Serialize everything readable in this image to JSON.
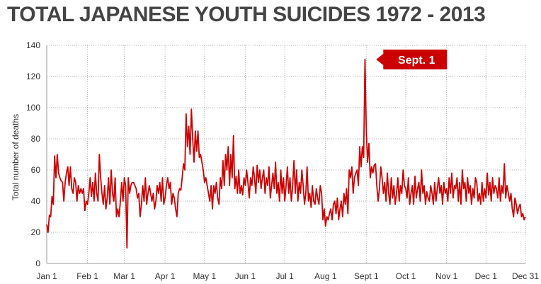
{
  "chart_data": {
    "type": "line",
    "title": "TOTAL JAPANESE YOUTH SUICIDES 1972 - 2013",
    "ylabel": "Total number of deaths",
    "xlabel": "",
    "ylim": [
      0,
      140
    ],
    "yticks": [
      0,
      20,
      40,
      60,
      80,
      100,
      120,
      140
    ],
    "grid": true,
    "line_color": "#cc0000",
    "x_tick_labels": [
      "Jan 1",
      "Feb 1",
      "Mar 1",
      "Apr 1",
      "May 1",
      "Jun 1",
      "Jul 1",
      "Aug 1",
      "Sept 1",
      "Oct 1",
      "Nov 1",
      "Dec 1",
      "Dec 31"
    ],
    "x_tick_days": [
      1,
      32,
      60,
      91,
      121,
      152,
      182,
      213,
      244,
      274,
      305,
      335,
      365
    ],
    "annotation": {
      "label": "Sept. 1",
      "day": 244,
      "value": 131
    },
    "series": [
      {
        "values": [
          25,
          20,
          31,
          30,
          43,
          38,
          69,
          55,
          70,
          58,
          55,
          53,
          52,
          40,
          52,
          58,
          62,
          50,
          62,
          48,
          45,
          55,
          52,
          40,
          50,
          45,
          48,
          45,
          48,
          34,
          40,
          38,
          45,
          55,
          43,
          52,
          40,
          58,
          45,
          40,
          70,
          55,
          45,
          38,
          50,
          35,
          42,
          55,
          38,
          60,
          45,
          40,
          55,
          30,
          35,
          30,
          40,
          52,
          40,
          55,
          50,
          10,
          55,
          45,
          50,
          52,
          52,
          50,
          48,
          42,
          45,
          30,
          38,
          50,
          40,
          55,
          38,
          45,
          50,
          45,
          40,
          45,
          35,
          40,
          50,
          45,
          52,
          40,
          55,
          38,
          42,
          50,
          55,
          48,
          52,
          38,
          45,
          42,
          35,
          30,
          45,
          48,
          47,
          55,
          64,
          60,
          96,
          75,
          88,
          70,
          99,
          80,
          65,
          85,
          72,
          85,
          68,
          70,
          65,
          60,
          52,
          55,
          50,
          45,
          40,
          50,
          35,
          50,
          45,
          52,
          42,
          38,
          55,
          48,
          66,
          50,
          70,
          60,
          75,
          50,
          70,
          55,
          82,
          48,
          56,
          45,
          60,
          45,
          50,
          44,
          55,
          50,
          60,
          52,
          42,
          55,
          50,
          62,
          55,
          45,
          63,
          52,
          60,
          48,
          55,
          60,
          45,
          55,
          50,
          62,
          42,
          50,
          58,
          48,
          65,
          45,
          52,
          40,
          60,
          45,
          55,
          40,
          50,
          62,
          45,
          55,
          40,
          50,
          66,
          45,
          60,
          40,
          52,
          45,
          60,
          50,
          38,
          45,
          62,
          40,
          45,
          36,
          50,
          40,
          38,
          48,
          42,
          38,
          50,
          45,
          28,
          35,
          24,
          30,
          28,
          32,
          35,
          28,
          38,
          40,
          32,
          42,
          28,
          35,
          40,
          30,
          45,
          38,
          48,
          32,
          60,
          55,
          62,
          45,
          55,
          58,
          60,
          50,
          75,
          62,
          75,
          68,
          131,
          85,
          65,
          77,
          55,
          62,
          58,
          63,
          64,
          50,
          40,
          48,
          62,
          55,
          45,
          52,
          40,
          58,
          45,
          38,
          55,
          42,
          50,
          38,
          45,
          55,
          40,
          50,
          45,
          60,
          50,
          48,
          42,
          55,
          38,
          45,
          50,
          38,
          56,
          42,
          48,
          52,
          40,
          60,
          45,
          50,
          38,
          46,
          42,
          40,
          50,
          45,
          38,
          52,
          40,
          48,
          55,
          45,
          50,
          38,
          52,
          45,
          48,
          40,
          55,
          45,
          58,
          42,
          50,
          48,
          55,
          40,
          52,
          38,
          60,
          48,
          52,
          40,
          55,
          45,
          50,
          38,
          48,
          42,
          55,
          52,
          40,
          45,
          38,
          52,
          40,
          48,
          42,
          58,
          44,
          52,
          40,
          55,
          45,
          50,
          48,
          42,
          55,
          40,
          50,
          45,
          64,
          42,
          50,
          45,
          40,
          45,
          35,
          30,
          42,
          38,
          32,
          36,
          38,
          30,
          32,
          28,
          30
        ]
      }
    ]
  }
}
